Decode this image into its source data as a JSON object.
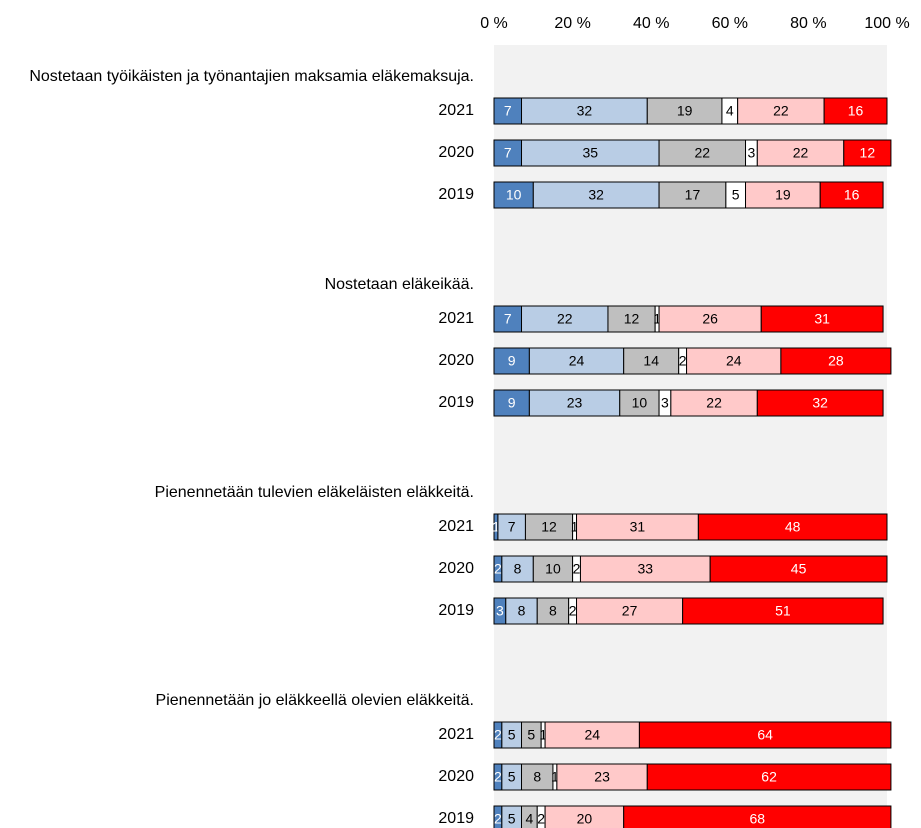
{
  "chart_data": {
    "type": "stacked-barh",
    "xlim": [
      0,
      100
    ],
    "xticks": [
      {
        "value": 0,
        "label": "0 %"
      },
      {
        "value": 20,
        "label": "20 %"
      },
      {
        "value": 40,
        "label": "40 %"
      },
      {
        "value": 60,
        "label": "60 %"
      },
      {
        "value": 80,
        "label": "80 %"
      },
      {
        "value": 100,
        "label": "100 %"
      }
    ],
    "groups": [
      "Nostetaan työikäisten ja työnantajien maksamia eläkemaksuja.",
      "Nostetaan eläkeikää.",
      "Pienennetään tulevien eläkeläisten eläkkeitä.",
      "Pienennetään jo eläkkeellä olevien eläkkeitä."
    ],
    "categories": [
      "2021",
      "2020",
      "2019",
      "2021",
      "2020",
      "2019",
      "2021",
      "2020",
      "2019",
      "2021",
      "2020",
      "2019"
    ],
    "series": [
      {
        "color": "#4f81bd",
        "label_color": "#ffffff",
        "values": [
          7,
          7,
          10,
          7,
          9,
          9,
          1,
          2,
          3,
          2,
          2,
          2
        ]
      },
      {
        "color": "#b9cde5",
        "label_color": "#000000",
        "values": [
          32,
          35,
          32,
          22,
          24,
          23,
          7,
          8,
          8,
          5,
          5,
          5
        ]
      },
      {
        "color": "#bfbfbf",
        "label_color": "#000000",
        "values": [
          19,
          22,
          17,
          12,
          14,
          10,
          12,
          10,
          8,
          5,
          8,
          4
        ]
      },
      {
        "color": "#ffffff",
        "label_color": "#000000",
        "values": [
          4,
          3,
          5,
          1,
          2,
          3,
          1,
          2,
          2,
          1,
          1,
          2
        ]
      },
      {
        "color": "#ffc9c9",
        "label_color": "#000000",
        "values": [
          22,
          22,
          19,
          26,
          24,
          22,
          31,
          33,
          27,
          24,
          23,
          20
        ]
      },
      {
        "color": "#ff0000",
        "label_color": "#ffffff",
        "values": [
          16,
          12,
          16,
          31,
          28,
          32,
          48,
          45,
          51,
          64,
          62,
          68
        ]
      }
    ]
  }
}
